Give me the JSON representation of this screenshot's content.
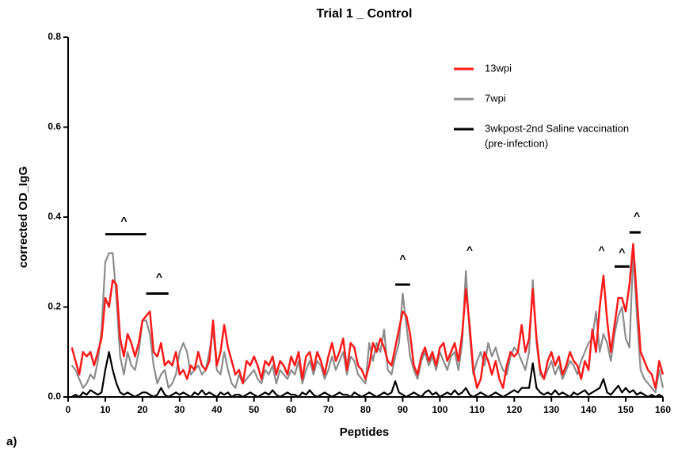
{
  "chart_data": {
    "type": "line",
    "title": "Trial 1 _ Control",
    "xlabel": "Peptides",
    "ylabel": "corrected OD_IgG",
    "panel_label": "a)",
    "x": [
      1,
      2,
      3,
      4,
      5,
      6,
      7,
      8,
      9,
      10,
      11,
      12,
      13,
      14,
      15,
      16,
      17,
      18,
      19,
      20,
      21,
      22,
      23,
      24,
      25,
      26,
      27,
      28,
      29,
      30,
      31,
      32,
      33,
      34,
      35,
      36,
      37,
      38,
      39,
      40,
      41,
      42,
      43,
      44,
      45,
      46,
      47,
      48,
      49,
      50,
      51,
      52,
      53,
      54,
      55,
      56,
      57,
      58,
      59,
      60,
      61,
      62,
      63,
      64,
      65,
      66,
      67,
      68,
      69,
      70,
      71,
      72,
      73,
      74,
      75,
      76,
      77,
      78,
      79,
      80,
      81,
      82,
      83,
      84,
      85,
      86,
      87,
      88,
      89,
      90,
      91,
      92,
      93,
      94,
      95,
      96,
      97,
      98,
      99,
      100,
      101,
      102,
      103,
      104,
      105,
      106,
      107,
      108,
      109,
      110,
      111,
      112,
      113,
      114,
      115,
      116,
      117,
      118,
      119,
      120,
      121,
      122,
      123,
      124,
      125,
      126,
      127,
      128,
      129,
      130,
      131,
      132,
      133,
      134,
      135,
      136,
      137,
      138,
      139,
      140,
      141,
      142,
      143,
      144,
      145,
      146,
      147,
      148,
      149,
      150,
      151,
      152,
      153,
      154,
      155,
      156,
      157,
      158,
      159,
      160
    ],
    "series": [
      {
        "name": "13wpi",
        "color": "#ff1a1a",
        "values": [
          0.11,
          0.08,
          0.05,
          0.1,
          0.09,
          0.1,
          0.07,
          0.1,
          0.13,
          0.22,
          0.2,
          0.26,
          0.25,
          0.13,
          0.09,
          0.14,
          0.12,
          0.09,
          0.12,
          0.17,
          0.18,
          0.19,
          0.1,
          0.09,
          0.12,
          0.07,
          0.08,
          0.07,
          0.1,
          0.05,
          0.06,
          0.04,
          0.07,
          0.06,
          0.1,
          0.07,
          0.06,
          0.08,
          0.17,
          0.07,
          0.1,
          0.16,
          0.11,
          0.08,
          0.05,
          0.06,
          0.03,
          0.08,
          0.07,
          0.09,
          0.07,
          0.04,
          0.08,
          0.07,
          0.09,
          0.05,
          0.08,
          0.07,
          0.05,
          0.09,
          0.07,
          0.1,
          0.04,
          0.09,
          0.1,
          0.06,
          0.1,
          0.08,
          0.05,
          0.09,
          0.12,
          0.08,
          0.1,
          0.13,
          0.06,
          0.12,
          0.11,
          0.07,
          0.06,
          0.04,
          0.07,
          0.12,
          0.1,
          0.13,
          0.11,
          0.08,
          0.07,
          0.11,
          0.15,
          0.19,
          0.18,
          0.14,
          0.07,
          0.05,
          0.09,
          0.11,
          0.08,
          0.1,
          0.07,
          0.11,
          0.12,
          0.08,
          0.1,
          0.12,
          0.08,
          0.14,
          0.24,
          0.16,
          0.06,
          0.02,
          0.04,
          0.1,
          0.08,
          0.05,
          0.08,
          0.04,
          0.02,
          0.07,
          0.1,
          0.09,
          0.1,
          0.16,
          0.1,
          0.13,
          0.24,
          0.13,
          0.06,
          0.04,
          0.08,
          0.1,
          0.07,
          0.09,
          0.05,
          0.07,
          0.1,
          0.08,
          0.07,
          0.04,
          0.08,
          0.06,
          0.15,
          0.1,
          0.2,
          0.27,
          0.17,
          0.1,
          0.16,
          0.22,
          0.22,
          0.19,
          0.25,
          0.34,
          0.22,
          0.1,
          0.08,
          0.06,
          0.05,
          0.02,
          0.08,
          0.05
        ]
      },
      {
        "name": "7wpi",
        "color": "#8c8c8c",
        "values": [
          0.07,
          0.06,
          0.04,
          0.02,
          0.03,
          0.05,
          0.04,
          0.08,
          0.15,
          0.3,
          0.32,
          0.32,
          0.22,
          0.09,
          0.05,
          0.1,
          0.07,
          0.06,
          0.1,
          0.17,
          0.17,
          0.14,
          0.07,
          0.03,
          0.05,
          0.06,
          0.02,
          0.03,
          0.05,
          0.1,
          0.12,
          0.1,
          0.05,
          0.06,
          0.07,
          0.05,
          0.06,
          0.1,
          0.15,
          0.06,
          0.05,
          0.1,
          0.06,
          0.03,
          0.02,
          0.05,
          0.03,
          0.04,
          0.05,
          0.06,
          0.04,
          0.03,
          0.06,
          0.05,
          0.07,
          0.03,
          0.06,
          0.05,
          0.04,
          0.06,
          0.05,
          0.08,
          0.03,
          0.06,
          0.08,
          0.05,
          0.08,
          0.07,
          0.04,
          0.06,
          0.09,
          0.06,
          0.08,
          0.1,
          0.05,
          0.09,
          0.08,
          0.05,
          0.04,
          0.03,
          0.12,
          0.08,
          0.12,
          0.1,
          0.15,
          0.06,
          0.05,
          0.09,
          0.12,
          0.23,
          0.16,
          0.09,
          0.06,
          0.04,
          0.08,
          0.1,
          0.07,
          0.09,
          0.06,
          0.1,
          0.08,
          0.06,
          0.09,
          0.1,
          0.06,
          0.12,
          0.28,
          0.14,
          0.05,
          0.08,
          0.1,
          0.07,
          0.12,
          0.09,
          0.11,
          0.08,
          0.06,
          0.05,
          0.09,
          0.11,
          0.1,
          0.08,
          0.06,
          0.1,
          0.26,
          0.12,
          0.05,
          0.04,
          0.06,
          0.08,
          0.05,
          0.07,
          0.04,
          0.06,
          0.08,
          0.07,
          0.05,
          0.08,
          0.1,
          0.12,
          0.13,
          0.19,
          0.1,
          0.14,
          0.12,
          0.08,
          0.14,
          0.18,
          0.2,
          0.13,
          0.11,
          0.32,
          0.18,
          0.06,
          0.04,
          0.03,
          0.02,
          0.01,
          0.06,
          0.02
        ]
      },
      {
        "name": "3wkpost-2nd Saline vaccination",
        "note": "(pre-infection)",
        "color": "#000000",
        "values": [
          0.0,
          0.005,
          0.0,
          0.01,
          0.005,
          0.015,
          0.01,
          0.005,
          0.01,
          0.06,
          0.1,
          0.06,
          0.03,
          0.01,
          0.005,
          0.01,
          0.005,
          0.0,
          0.005,
          0.01,
          0.01,
          0.005,
          0.0,
          0.005,
          0.02,
          0.005,
          0.0,
          0.005,
          0.01,
          0.005,
          0.01,
          0.005,
          0.0,
          0.01,
          0.005,
          0.015,
          0.005,
          0.01,
          0.005,
          0.0,
          0.01,
          0.005,
          0.01,
          0.0,
          0.005,
          0.005,
          0.0,
          0.005,
          0.01,
          0.005,
          0.0,
          0.005,
          0.01,
          0.005,
          0.015,
          0.005,
          0.0,
          0.005,
          0.01,
          0.005,
          0.005,
          0.0,
          0.01,
          0.005,
          0.015,
          0.005,
          0.0,
          0.005,
          0.01,
          0.005,
          0.0,
          0.005,
          0.01,
          0.005,
          0.005,
          0.0,
          0.01,
          0.005,
          0.0,
          0.005,
          0.01,
          0.005,
          0.0,
          0.005,
          0.01,
          0.005,
          0.01,
          0.035,
          0.01,
          0.005,
          0.0,
          0.005,
          0.01,
          0.005,
          0.0,
          0.01,
          0.015,
          0.005,
          0.01,
          0.0,
          0.005,
          0.01,
          0.005,
          0.015,
          0.005,
          0.01,
          0.02,
          0.005,
          0.0,
          0.005,
          0.01,
          0.005,
          0.0,
          0.005,
          0.01,
          0.005,
          0.0,
          0.005,
          0.01,
          0.015,
          0.01,
          0.02,
          0.02,
          0.02,
          0.075,
          0.02,
          0.01,
          0.005,
          0.01,
          0.005,
          0.015,
          0.005,
          0.01,
          0.005,
          0.0,
          0.01,
          0.005,
          0.01,
          0.015,
          0.005,
          0.01,
          0.015,
          0.02,
          0.04,
          0.01,
          0.005,
          0.015,
          0.025,
          0.01,
          0.02,
          0.01,
          0.015,
          0.005,
          0.01,
          0.005,
          0.0,
          0.005,
          0.0,
          0.005,
          0.0
        ]
      }
    ],
    "xlim": [
      0,
      160
    ],
    "ylim": [
      0,
      0.8
    ],
    "xticks": [
      0,
      10,
      20,
      30,
      40,
      50,
      60,
      70,
      80,
      90,
      100,
      110,
      120,
      130,
      140,
      150,
      160
    ],
    "yticks": [
      {
        "value": 0,
        "label": "0.0"
      },
      0.2,
      0.4,
      0.6,
      0.8
    ],
    "annotations": [
      {
        "text": "^",
        "x": 15,
        "y": 0.39
      },
      {
        "text": "^",
        "x": 24.5,
        "y": 0.265
      },
      {
        "text": "^",
        "x": 90,
        "y": 0.305
      },
      {
        "text": "^",
        "x": 108,
        "y": 0.325
      },
      {
        "text": "^",
        "x": 143.5,
        "y": 0.325
      },
      {
        "text": "^",
        "x": 149,
        "y": 0.32
      },
      {
        "text": "^",
        "x": 153,
        "y": 0.4
      }
    ],
    "brackets": [
      {
        "x": [
          10,
          21
        ],
        "y": 0.362
      },
      {
        "x": [
          21,
          27
        ],
        "y": 0.23
      },
      {
        "x": [
          88,
          92
        ],
        "y": 0.25
      },
      {
        "x": [
          147,
          151
        ],
        "y": 0.29
      },
      {
        "x": [
          151,
          154
        ],
        "y": 0.366
      }
    ]
  }
}
